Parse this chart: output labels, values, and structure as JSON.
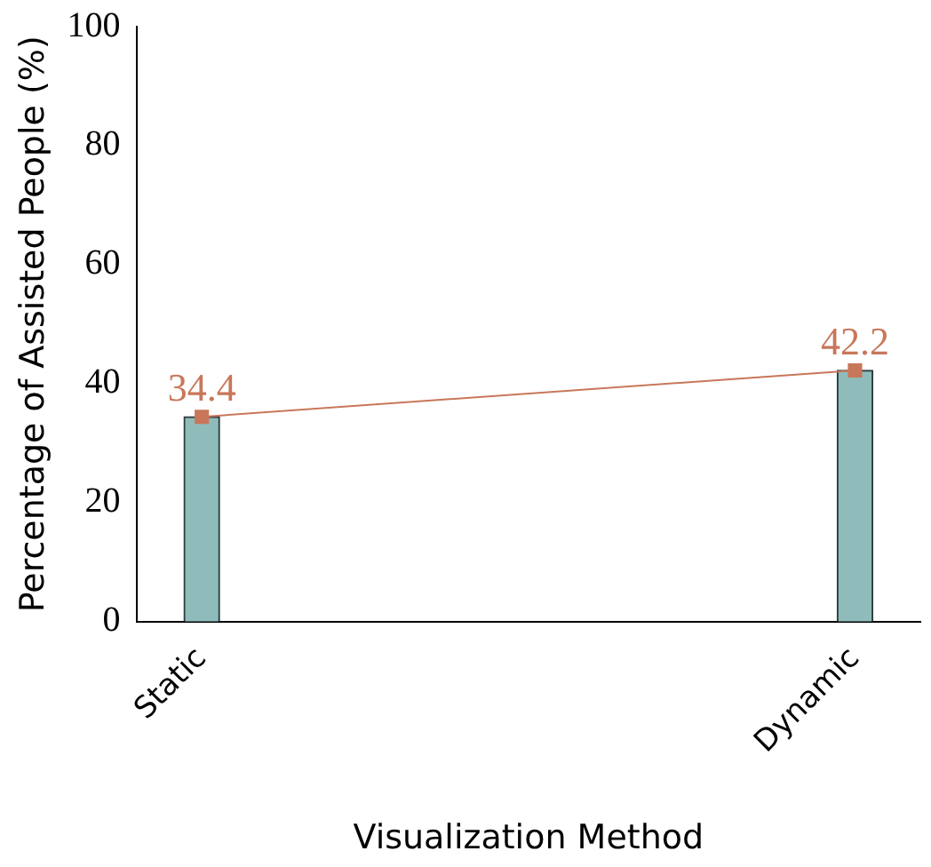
{
  "chart_data": {
    "type": "bar",
    "xlabel": "Visualization Method",
    "ylabel": "Percentage of Assisted People (%)",
    "categories": [
      "Static",
      "Dynamic"
    ],
    "series": [
      {
        "color": "#8fbcbb",
        "values": [
          34.4,
          42.2
        ]
      },
      {
        "type": "line",
        "color": "#c8775a",
        "values": [
          34.4,
          42.2
        ],
        "marker": "square",
        "value_labels": [
          "34.4",
          "42.2"
        ]
      }
    ],
    "ylim": [
      0,
      100
    ],
    "yticks": [
      0,
      20,
      40,
      60,
      80,
      100
    ],
    "grid": false,
    "legend": false
  }
}
